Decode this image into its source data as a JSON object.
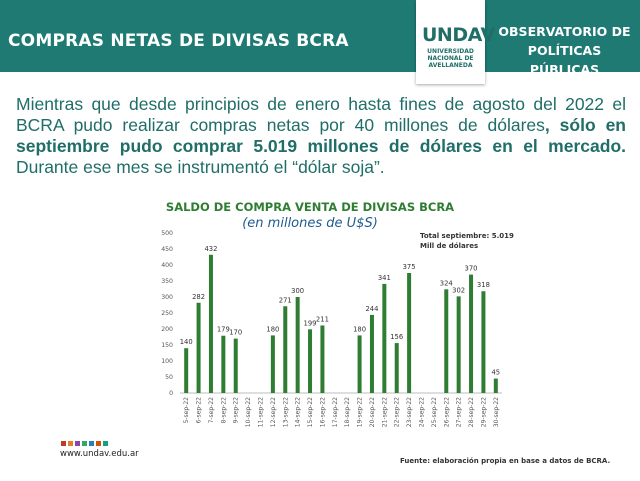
{
  "header": {
    "title": "COMPRAS NETAS DE DIVISAS BCRA",
    "logo": "UNDAV",
    "logo_sub": "UNIVERSIDAD NACIONAL DE AVELLANEDA",
    "observatorio": "OBSERVATORIO DE POLÍTICAS PÚBLICAS",
    "colors": {
      "teal": "#1f7a74",
      "bar_green": "#2e7d32"
    }
  },
  "intro": {
    "part1": "Mientras que desde principios de enero hasta fines de agosto del 2022 el BCRA pudo realizar compras netas por 40 millones de dólares",
    "part2": ", sólo en septiembre pudo comprar 5.019 millones de dólares en el mercado.",
    "part3": " Durante ese mes se instrumentó el “dólar soja”."
  },
  "chart_data": {
    "type": "bar",
    "title": "SALDO DE COMPRA VENTA DE DIVISAS BCRA",
    "subtitle": "(en millones de U$S)",
    "annotation": "Total septiembre: 5.019 Mill de dólares",
    "ylim": [
      0,
      500
    ],
    "yticks": [
      0,
      50,
      100,
      150,
      200,
      250,
      300,
      350,
      400,
      450,
      500
    ],
    "grid": false,
    "categories": [
      "5-sep-22",
      "6-sep-22",
      "7-sep-22",
      "8-sep-22",
      "9-sep-22",
      "10-sep-22",
      "11-sep-22",
      "12-sep-22",
      "13-sep-22",
      "14-sep-22",
      "15-sep-22",
      "16-sep-22",
      "17-sep-22",
      "18-sep-22",
      "19-sep-22",
      "20-sep-22",
      "21-sep-22",
      "22-sep-22",
      "23-sep-22",
      "24-sep-22",
      "25-sep-22",
      "26-sep-22",
      "27-sep-22",
      "28-sep-22",
      "29-sep-22",
      "30-sep-22"
    ],
    "values": [
      140,
      282,
      432,
      179,
      170,
      null,
      null,
      180,
      271,
      300,
      199,
      211,
      null,
      null,
      180,
      244,
      341,
      156,
      375,
      null,
      null,
      324,
      302,
      370,
      318,
      45
    ]
  },
  "footer": {
    "url": "www.undav.edu.ar",
    "source": "Fuente: elaboración propia en base a datos de BCRA.",
    "dot_colors": [
      "#c0392b",
      "#e67e22",
      "#8e44ad",
      "#27ae60",
      "#2980b9",
      "#d35400",
      "#16a085"
    ]
  }
}
